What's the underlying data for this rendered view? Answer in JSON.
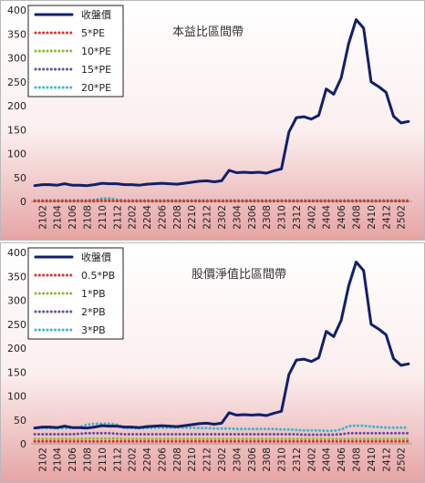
{
  "colors": {
    "price": "#10206a",
    "pe5": "#d9342f",
    "pe10": "#8dbb3b",
    "pe15": "#6a4fa0",
    "pe20": "#3fb6cf",
    "bg_top": "#ffffff",
    "bg_bottom": "#e6a4a4"
  },
  "chart_data": [
    {
      "type": "line",
      "title": "本益比區間帶",
      "ylim": [
        0,
        400
      ],
      "yticks": [
        0,
        50,
        100,
        150,
        200,
        250,
        300,
        350,
        400
      ],
      "x": [
        "2101",
        "2102",
        "2103",
        "2104",
        "2105",
        "2106",
        "2107",
        "2108",
        "2109",
        "2110",
        "2111",
        "2112",
        "2201",
        "2202",
        "2203",
        "2204",
        "2205",
        "2206",
        "2207",
        "2208",
        "2209",
        "2210",
        "2211",
        "2212",
        "2301",
        "2302",
        "2303",
        "2304",
        "2305",
        "2306",
        "2307",
        "2308",
        "2309",
        "2310",
        "2311",
        "2312",
        "2401",
        "2402",
        "2403",
        "2404",
        "2405",
        "2406",
        "2407",
        "2408",
        "2409",
        "2410",
        "2411",
        "2412",
        "2501",
        "2502",
        "2503"
      ],
      "xtick_labels": [
        "2102",
        "2104",
        "2106",
        "2108",
        "2110",
        "2112",
        "2202",
        "2204",
        "2206",
        "2208",
        "2210",
        "2212",
        "2302",
        "2304",
        "2306",
        "2308",
        "2310",
        "2312",
        "2402",
        "2404",
        "2406",
        "2408",
        "2410",
        "2412",
        "2502"
      ],
      "legend_position": "top-left",
      "series": [
        {
          "name": "收盤價",
          "values": [
            33,
            35,
            35,
            34,
            37,
            34,
            34,
            33,
            35,
            38,
            37,
            37,
            35,
            35,
            34,
            36,
            37,
            38,
            37,
            36,
            38,
            40,
            42,
            43,
            41,
            43,
            65,
            60,
            61,
            60,
            61,
            59,
            64,
            68,
            145,
            175,
            177,
            172,
            180,
            235,
            224,
            258,
            330,
            380,
            362,
            250,
            240,
            228,
            178,
            164,
            167
          ]
        },
        {
          "name": "5*PE",
          "values": [
            0.5,
            0.5,
            0.5,
            0.5,
            0.5,
            0.5,
            0.5,
            0.5,
            0.5,
            1,
            1,
            1,
            0.5,
            0.5,
            0.5,
            0.5,
            0.5,
            0.5,
            0.5,
            0.5,
            0.5,
            0.5,
            0.5,
            0.5,
            0.5,
            0.5,
            0.5,
            0.5,
            0.5,
            0.5,
            0.5,
            0.5,
            0.5,
            0.5,
            0.5,
            0.5,
            0.5,
            0.5,
            0.5,
            0.5,
            0.5,
            0.5,
            0.5,
            0.5,
            0.5,
            0.5,
            0.5,
            0.5,
            0.5,
            0.5,
            0.5
          ]
        },
        {
          "name": "10*PE",
          "values": [
            1,
            1,
            1,
            1,
            1,
            1,
            1,
            1,
            1,
            2,
            2,
            2,
            1,
            1,
            1,
            1,
            1,
            1,
            1,
            1,
            1,
            1,
            1,
            1,
            1,
            1,
            1,
            1,
            1,
            1,
            1,
            1,
            1,
            1,
            1,
            1,
            1,
            1,
            1,
            1,
            1,
            1,
            1,
            1,
            1,
            1,
            1,
            1,
            1,
            1,
            1
          ]
        },
        {
          "name": "15*PE",
          "values": [
            1.5,
            1.5,
            1.5,
            1.5,
            1.5,
            1.5,
            1.5,
            1.5,
            2,
            3,
            3,
            2,
            1.5,
            1.5,
            1.5,
            1.5,
            1.5,
            1.5,
            1.5,
            1.5,
            1.5,
            1.5,
            1.5,
            1.5,
            1.5,
            1.5,
            1.5,
            1.5,
            1.5,
            1.5,
            1.5,
            1.5,
            1.5,
            1.5,
            1.5,
            1.5,
            1.5,
            1.5,
            1.5,
            1.5,
            1.5,
            1.5,
            1.5,
            1.5,
            1.5,
            1.5,
            1.5,
            1.5,
            1.5,
            1.5,
            1.5
          ]
        },
        {
          "name": "20*PE",
          "values": [
            2,
            2,
            2,
            2,
            2,
            2,
            2,
            2,
            3,
            6,
            6,
            4,
            2,
            2,
            2,
            2,
            2,
            2,
            2,
            2,
            2,
            2,
            2,
            2,
            2,
            2,
            2,
            2,
            2,
            2,
            2,
            2,
            2,
            2,
            2,
            2,
            2,
            2,
            2,
            2,
            2,
            2,
            2,
            2,
            2,
            2,
            2,
            2,
            2,
            2,
            2
          ]
        }
      ]
    },
    {
      "type": "line",
      "title": "股價淨值比區間帶",
      "ylim": [
        0,
        400
      ],
      "yticks": [
        0,
        50,
        100,
        150,
        200,
        250,
        300,
        350,
        400
      ],
      "x": [
        "2101",
        "2102",
        "2103",
        "2104",
        "2105",
        "2106",
        "2107",
        "2108",
        "2109",
        "2110",
        "2111",
        "2112",
        "2201",
        "2202",
        "2203",
        "2204",
        "2205",
        "2206",
        "2207",
        "2208",
        "2209",
        "2210",
        "2211",
        "2212",
        "2301",
        "2302",
        "2303",
        "2304",
        "2305",
        "2306",
        "2307",
        "2308",
        "2309",
        "2310",
        "2311",
        "2312",
        "2401",
        "2402",
        "2403",
        "2404",
        "2405",
        "2406",
        "2407",
        "2408",
        "2409",
        "2410",
        "2411",
        "2412",
        "2501",
        "2502",
        "2503"
      ],
      "xtick_labels": [
        "2102",
        "2104",
        "2106",
        "2108",
        "2110",
        "2112",
        "2202",
        "2204",
        "2206",
        "2208",
        "2210",
        "2212",
        "2302",
        "2304",
        "2306",
        "2308",
        "2310",
        "2312",
        "2402",
        "2404",
        "2406",
        "2408",
        "2410",
        "2412",
        "2502"
      ],
      "legend_position": "top-left",
      "series": [
        {
          "name": "收盤價",
          "values": [
            33,
            35,
            35,
            34,
            37,
            34,
            34,
            33,
            35,
            38,
            37,
            37,
            35,
            35,
            34,
            36,
            37,
            38,
            37,
            36,
            38,
            40,
            42,
            43,
            41,
            43,
            65,
            60,
            61,
            60,
            61,
            59,
            64,
            68,
            145,
            175,
            177,
            172,
            180,
            235,
            224,
            258,
            330,
            380,
            362,
            250,
            240,
            228,
            178,
            164,
            167
          ]
        },
        {
          "name": "0.5*PB",
          "values": [
            5,
            5,
            5,
            5,
            5,
            5,
            5,
            5,
            5,
            5,
            5,
            5,
            5,
            5,
            5,
            5,
            5,
            5,
            5,
            5,
            5,
            5,
            5,
            5,
            5,
            5,
            5,
            5,
            5,
            5,
            5,
            5,
            5,
            5,
            5,
            5,
            5,
            5,
            5,
            5,
            5,
            5,
            5,
            5,
            5,
            5,
            5,
            5,
            5,
            5,
            5
          ]
        },
        {
          "name": "1*PB",
          "values": [
            10,
            10,
            10,
            10,
            10,
            10,
            10,
            11,
            11,
            11,
            11,
            11,
            10,
            10,
            10,
            10,
            10,
            10,
            10,
            10,
            10,
            10,
            10,
            10,
            10,
            10,
            10,
            10,
            10,
            10,
            10,
            10,
            10,
            10,
            10,
            10,
            10,
            10,
            10,
            10,
            10,
            10,
            10,
            10,
            10,
            10,
            10,
            10,
            10,
            10,
            10
          ]
        },
        {
          "name": "2*PB",
          "values": [
            20,
            20,
            20,
            20,
            20,
            20,
            21,
            22,
            22,
            22,
            22,
            21,
            20,
            20,
            20,
            20,
            20,
            20,
            20,
            20,
            20,
            20,
            20,
            20,
            20,
            20,
            20,
            20,
            20,
            20,
            20,
            20,
            20,
            20,
            20,
            20,
            19,
            19,
            19,
            19,
            19,
            20,
            22,
            22,
            22,
            22,
            22,
            22,
            22,
            22,
            22
          ]
        },
        {
          "name": "3*PB",
          "values": [
            33,
            33,
            33,
            33,
            33,
            33,
            35,
            40,
            42,
            42,
            42,
            40,
            33,
            33,
            33,
            33,
            34,
            34,
            34,
            34,
            34,
            34,
            33,
            33,
            32,
            32,
            32,
            31,
            31,
            31,
            31,
            31,
            31,
            30,
            30,
            29,
            28,
            28,
            28,
            27,
            27,
            30,
            37,
            38,
            38,
            36,
            35,
            34,
            34,
            34,
            34
          ]
        }
      ]
    }
  ]
}
